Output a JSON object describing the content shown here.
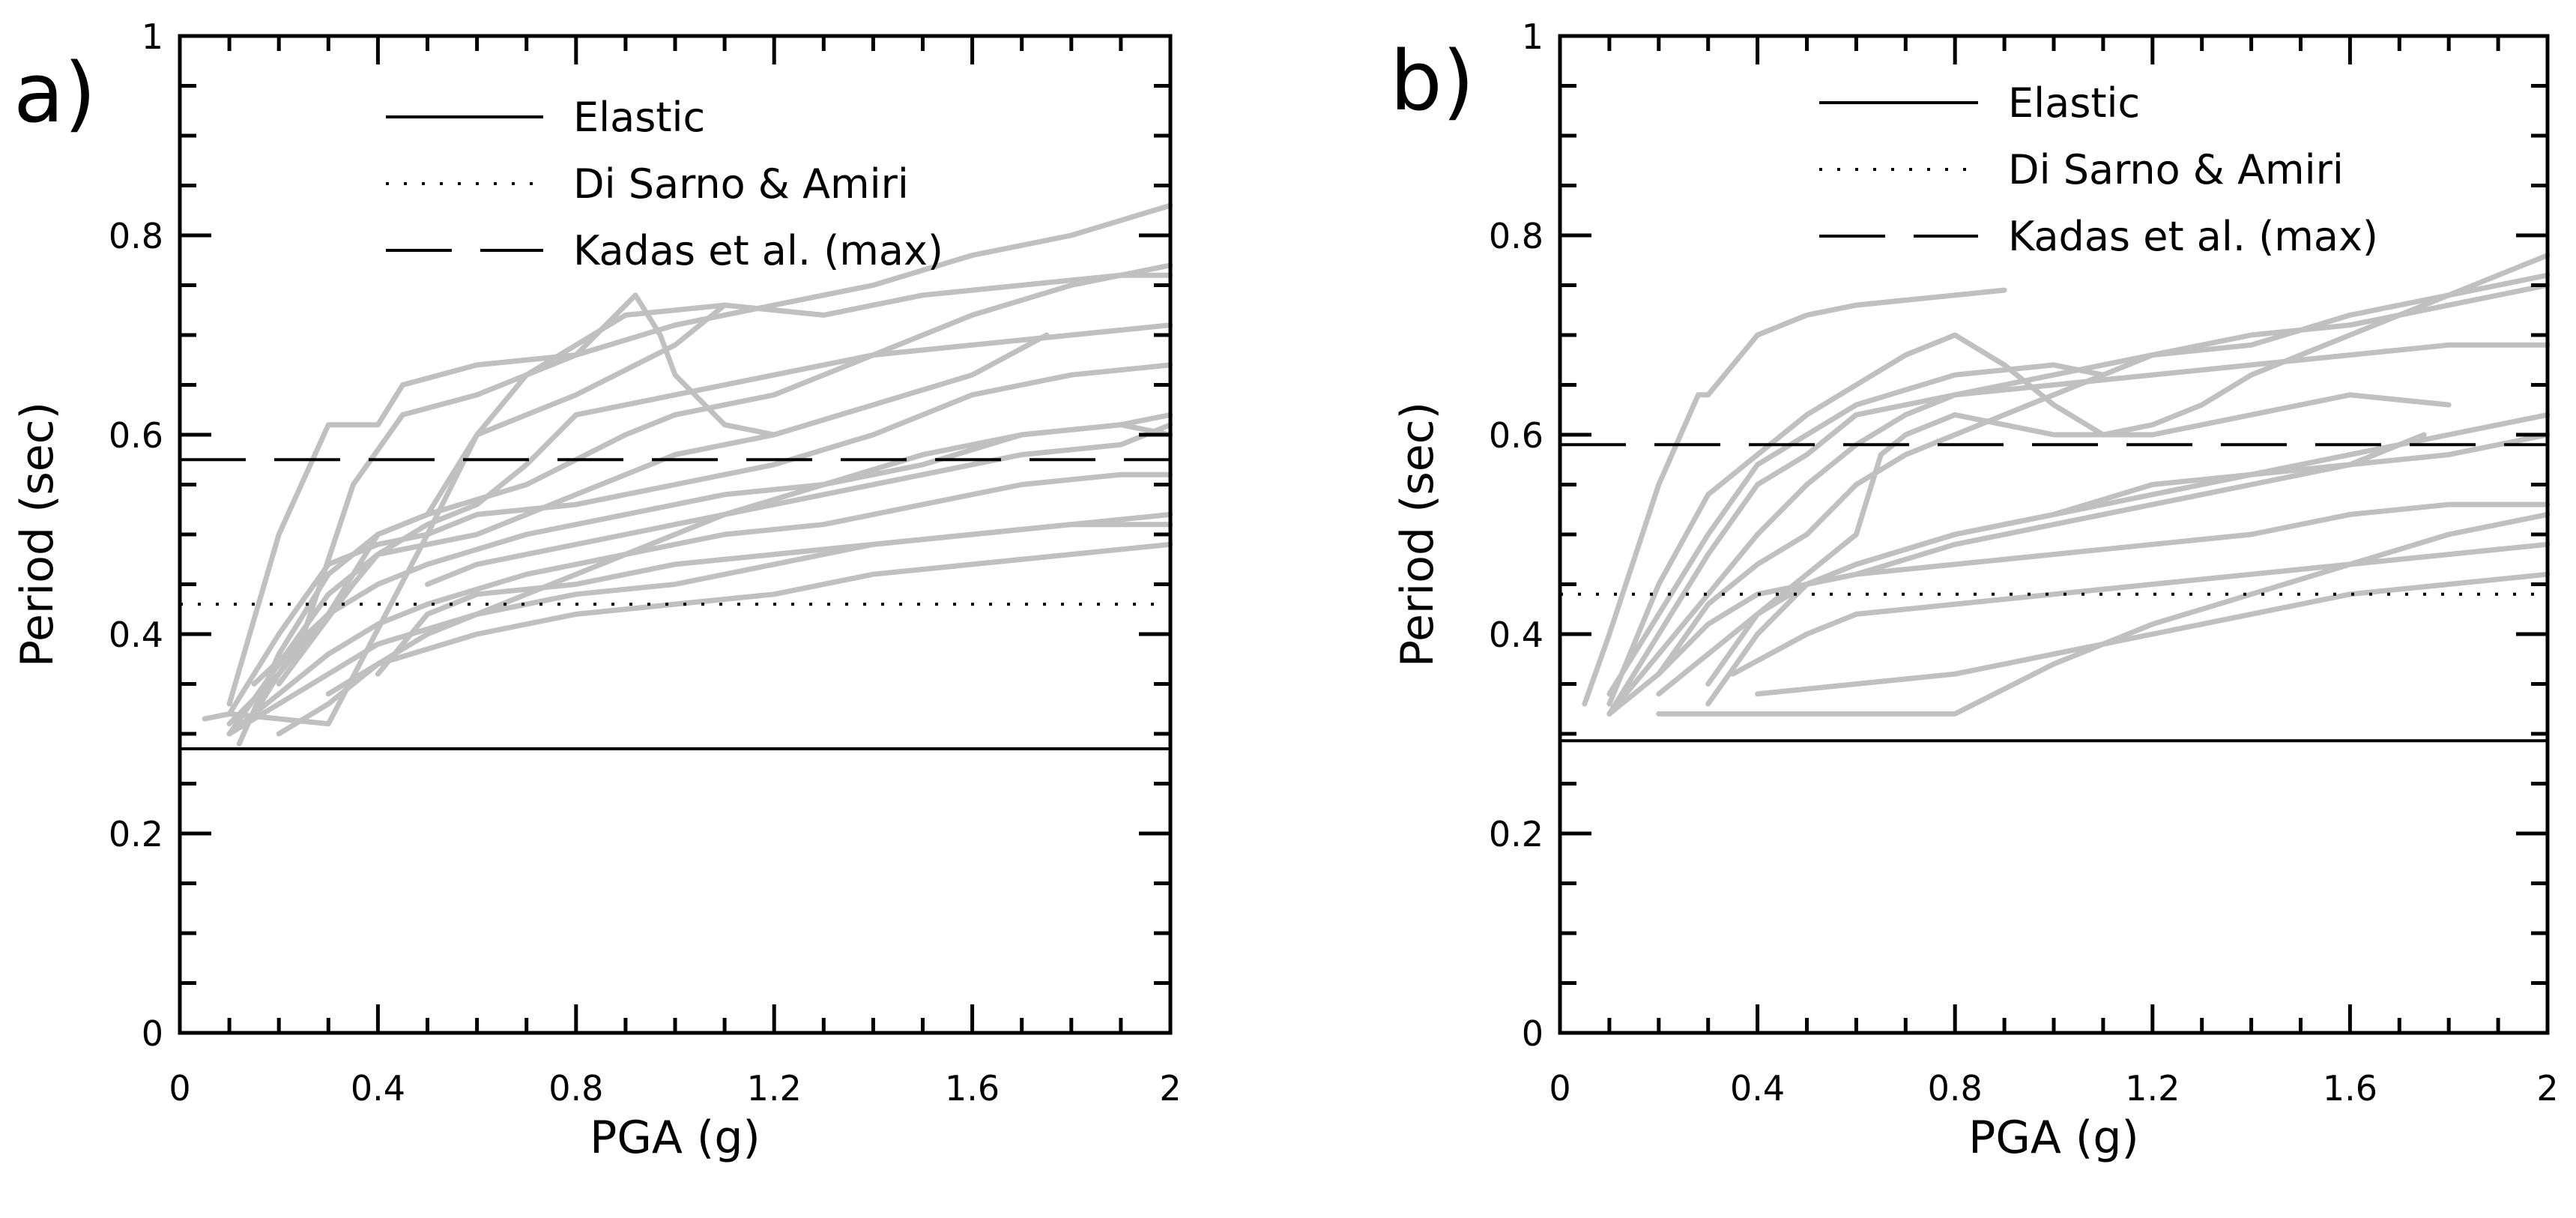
{
  "chart_data": [
    {
      "type": "line",
      "panel_label": "a)",
      "xlabel": "PGA (g)",
      "ylabel": "Period (sec)",
      "xlim": [
        0,
        2
      ],
      "ylim": [
        0,
        1
      ],
      "xticks": [
        "0",
        "0.4",
        "0.8",
        "1.2",
        "1.6",
        "2"
      ],
      "yticks": [
        "0",
        "0.2",
        "0.4",
        "0.6",
        "0.8",
        "1"
      ],
      "legend": [
        {
          "label": "Elastic",
          "style": "solid"
        },
        {
          "label": "Di Sarno & Amiri",
          "style": "dotted"
        },
        {
          "label": "Kadas et al. (max)",
          "style": "dashed"
        }
      ],
      "reference_lines": {
        "elastic": 0.285,
        "di_sarno_amiri": 0.43,
        "kadas_max": 0.575
      },
      "series_color": "#c0c0c0",
      "series": [
        {
          "name": "r1",
          "x": [
            0.05,
            0.1,
            0.2,
            0.3,
            0.4,
            0.5,
            0.6,
            0.8,
            1.0,
            1.2,
            1.4,
            1.6,
            1.8,
            2.0
          ],
          "y": [
            0.315,
            0.32,
            0.4,
            0.47,
            0.49,
            0.5,
            0.52,
            0.53,
            0.55,
            0.57,
            0.6,
            0.64,
            0.66,
            0.67
          ]
        },
        {
          "name": "r2",
          "x": [
            0.1,
            0.2,
            0.3,
            0.4,
            0.45,
            0.6,
            0.8,
            1.0,
            1.2,
            1.4,
            1.6,
            1.8,
            2.0
          ],
          "y": [
            0.33,
            0.5,
            0.61,
            0.61,
            0.65,
            0.67,
            0.68,
            0.71,
            0.73,
            0.75,
            0.78,
            0.8,
            0.83
          ]
        },
        {
          "name": "r3",
          "x": [
            0.15,
            0.25,
            0.35,
            0.45,
            0.6,
            0.8,
            0.92,
            0.97,
            1.0,
            1.1,
            1.2
          ],
          "y": [
            0.32,
            0.4,
            0.55,
            0.62,
            0.64,
            0.68,
            0.74,
            0.7,
            0.66,
            0.61,
            0.6
          ]
        },
        {
          "name": "r4",
          "x": [
            0.1,
            0.2,
            0.3,
            0.4,
            0.5,
            0.7,
            0.9,
            1.1,
            1.3,
            1.5,
            1.7,
            1.9,
            2.0
          ],
          "y": [
            0.31,
            0.36,
            0.42,
            0.45,
            0.47,
            0.5,
            0.52,
            0.54,
            0.55,
            0.57,
            0.6,
            0.61,
            0.62
          ]
        },
        {
          "name": "r5",
          "x": [
            0.1,
            0.2,
            0.3,
            0.4,
            0.5,
            0.7,
            0.9,
            1.1,
            1.3,
            1.5,
            1.7,
            1.9,
            2.0
          ],
          "y": [
            0.3,
            0.34,
            0.38,
            0.41,
            0.43,
            0.46,
            0.48,
            0.5,
            0.51,
            0.53,
            0.55,
            0.56,
            0.56
          ]
        },
        {
          "name": "r6",
          "x": [
            0.1,
            0.2,
            0.3,
            0.4,
            0.6,
            0.8,
            1.0,
            1.2,
            1.4,
            1.6,
            1.8,
            2.0
          ],
          "y": [
            0.3,
            0.33,
            0.36,
            0.39,
            0.42,
            0.44,
            0.45,
            0.47,
            0.49,
            0.5,
            0.51,
            0.52
          ]
        },
        {
          "name": "r7",
          "x": [
            0.15,
            0.3,
            0.4,
            0.5,
            0.7,
            0.9,
            1.0,
            1.2,
            1.4,
            1.6,
            1.8,
            2.0
          ],
          "y": [
            0.35,
            0.42,
            0.5,
            0.52,
            0.55,
            0.6,
            0.62,
            0.64,
            0.68,
            0.72,
            0.75,
            0.77
          ]
        },
        {
          "name": "r8",
          "x": [
            0.2,
            0.35,
            0.4,
            0.6,
            0.8,
            1.0,
            1.2,
            1.4,
            1.6,
            1.75
          ],
          "y": [
            0.35,
            0.45,
            0.48,
            0.5,
            0.54,
            0.58,
            0.6,
            0.63,
            0.66,
            0.7
          ]
        },
        {
          "name": "r9",
          "x": [
            0.1,
            0.2,
            0.3,
            0.4,
            0.5,
            0.6,
            0.7,
            0.8,
            1.0,
            1.2,
            1.4,
            1.6,
            1.8,
            2.0
          ],
          "y": [
            0.3,
            0.37,
            0.44,
            0.48,
            0.51,
            0.53,
            0.57,
            0.62,
            0.64,
            0.66,
            0.68,
            0.69,
            0.7,
            0.71
          ]
        },
        {
          "name": "r10",
          "x": [
            0.2,
            0.3,
            0.4,
            0.6,
            0.8,
            1.0,
            1.2,
            1.4,
            1.6,
            1.8,
            2.0
          ],
          "y": [
            0.3,
            0.33,
            0.37,
            0.4,
            0.42,
            0.43,
            0.44,
            0.46,
            0.47,
            0.48,
            0.49
          ]
        },
        {
          "name": "r11",
          "x": [
            0.3,
            0.4,
            0.5,
            0.7,
            0.9,
            1.1,
            1.3,
            1.5,
            1.7,
            1.9,
            2.0
          ],
          "y": [
            0.34,
            0.37,
            0.4,
            0.44,
            0.48,
            0.52,
            0.55,
            0.58,
            0.6,
            0.61,
            0.6
          ]
        },
        {
          "name": "r12",
          "x": [
            0.4,
            0.5,
            0.6,
            0.8,
            1.0,
            1.2,
            1.4,
            1.6,
            1.8,
            2.0
          ],
          "y": [
            0.36,
            0.42,
            0.44,
            0.45,
            0.47,
            0.48,
            0.49,
            0.5,
            0.51,
            0.51
          ]
        },
        {
          "name": "r13",
          "x": [
            0.12,
            0.2,
            0.3,
            0.4,
            0.5,
            0.6,
            0.8,
            1.0,
            1.1
          ],
          "y": [
            0.29,
            0.38,
            0.46,
            0.5,
            0.52,
            0.6,
            0.64,
            0.69,
            0.73
          ]
        },
        {
          "name": "r14",
          "x": [
            0.5,
            0.6,
            0.7,
            0.9,
            1.1,
            1.3,
            1.5,
            1.7,
            1.9,
            2.0
          ],
          "y": [
            0.45,
            0.47,
            0.48,
            0.5,
            0.52,
            0.54,
            0.56,
            0.58,
            0.59,
            0.61
          ]
        },
        {
          "name": "r15",
          "x": [
            0.1,
            0.3,
            0.5,
            0.6,
            0.7,
            0.9,
            1.1,
            1.3,
            1.5,
            1.7,
            1.9,
            2.0
          ],
          "y": [
            0.32,
            0.31,
            0.5,
            0.6,
            0.66,
            0.72,
            0.73,
            0.72,
            0.74,
            0.75,
            0.76,
            0.76
          ]
        }
      ]
    },
    {
      "type": "line",
      "panel_label": "b)",
      "xlabel": "PGA (g)",
      "ylabel": "Period (sec)",
      "xlim": [
        0,
        2
      ],
      "ylim": [
        0,
        1
      ],
      "xticks": [
        "0",
        "0.4",
        "0.8",
        "1.2",
        "1.6",
        "2"
      ],
      "yticks": [
        "0",
        "0.2",
        "0.4",
        "0.6",
        "0.8",
        "1"
      ],
      "legend": [
        {
          "label": "Elastic",
          "style": "solid"
        },
        {
          "label": "Di Sarno & Amiri",
          "style": "dotted"
        },
        {
          "label": "Kadas et al. (max)",
          "style": "dashed"
        }
      ],
      "reference_lines": {
        "elastic": 0.293,
        "di_sarno_amiri": 0.44,
        "kadas_max": 0.59
      },
      "series_color": "#c0c0c0",
      "series": [
        {
          "name": "s1",
          "x": [
            0.05,
            0.1,
            0.2,
            0.28,
            0.3,
            0.4,
            0.5,
            0.6,
            0.8,
            0.9
          ],
          "y": [
            0.33,
            0.4,
            0.55,
            0.64,
            0.64,
            0.7,
            0.72,
            0.73,
            0.74,
            0.745
          ]
        },
        {
          "name": "s2",
          "x": [
            0.1,
            0.2,
            0.3,
            0.4,
            0.5,
            0.6,
            0.7,
            0.8,
            0.9,
            1.0,
            1.1,
            1.2,
            1.3,
            1.4,
            1.6,
            1.8,
            2.0
          ],
          "y": [
            0.33,
            0.45,
            0.54,
            0.58,
            0.62,
            0.65,
            0.68,
            0.7,
            0.67,
            0.63,
            0.6,
            0.61,
            0.63,
            0.66,
            0.7,
            0.74,
            0.78
          ]
        },
        {
          "name": "s3",
          "x": [
            0.1,
            0.2,
            0.3,
            0.4,
            0.5,
            0.6,
            0.8,
            1.0,
            1.2,
            1.4,
            1.6,
            1.8,
            2.0
          ],
          "y": [
            0.32,
            0.4,
            0.48,
            0.55,
            0.58,
            0.62,
            0.64,
            0.66,
            0.68,
            0.7,
            0.71,
            0.73,
            0.75
          ]
        },
        {
          "name": "s4",
          "x": [
            0.2,
            0.3,
            0.4,
            0.5,
            0.6,
            0.7,
            0.8,
            0.9,
            1.0,
            1.2,
            1.4,
            1.6,
            1.8,
            2.0
          ],
          "y": [
            0.36,
            0.43,
            0.47,
            0.5,
            0.55,
            0.58,
            0.6,
            0.62,
            0.64,
            0.68,
            0.69,
            0.72,
            0.74,
            0.76
          ]
        },
        {
          "name": "s5",
          "x": [
            0.1,
            0.2,
            0.3,
            0.4,
            0.6,
            0.8,
            1.0,
            1.2,
            1.4,
            1.6,
            1.8,
            2.0
          ],
          "y": [
            0.32,
            0.36,
            0.41,
            0.44,
            0.46,
            0.49,
            0.51,
            0.53,
            0.55,
            0.57,
            0.58,
            0.6
          ]
        },
        {
          "name": "s6",
          "x": [
            0.2,
            0.3,
            0.4,
            0.5,
            0.6,
            0.8,
            1.0,
            1.2,
            1.4,
            1.6,
            1.8,
            2.0
          ],
          "y": [
            0.34,
            0.38,
            0.42,
            0.45,
            0.47,
            0.5,
            0.52,
            0.54,
            0.56,
            0.58,
            0.6,
            0.62
          ]
        },
        {
          "name": "s7",
          "x": [
            0.3,
            0.4,
            0.5,
            0.6,
            0.8,
            1.0,
            1.2,
            1.4,
            1.6,
            1.8,
            2.0
          ],
          "y": [
            0.33,
            0.4,
            0.45,
            0.46,
            0.47,
            0.48,
            0.49,
            0.5,
            0.52,
            0.53,
            0.53
          ]
        },
        {
          "name": "s8",
          "x": [
            0.35,
            0.5,
            0.6,
            0.8,
            1.0,
            1.2,
            1.4,
            1.6,
            1.8,
            2.0
          ],
          "y": [
            0.36,
            0.4,
            0.42,
            0.43,
            0.44,
            0.45,
            0.46,
            0.47,
            0.48,
            0.49
          ]
        },
        {
          "name": "s9",
          "x": [
            0.4,
            0.6,
            0.8,
            1.0,
            1.2,
            1.4,
            1.6,
            1.8,
            2.0
          ],
          "y": [
            0.34,
            0.35,
            0.36,
            0.38,
            0.4,
            0.42,
            0.44,
            0.45,
            0.46
          ]
        },
        {
          "name": "s10",
          "x": [
            0.2,
            0.4,
            0.6,
            0.8,
            1.0,
            1.2,
            1.4,
            1.6,
            1.8,
            2.0
          ],
          "y": [
            0.32,
            0.32,
            0.32,
            0.32,
            0.37,
            0.41,
            0.44,
            0.47,
            0.5,
            0.52
          ]
        },
        {
          "name": "s11",
          "x": [
            0.1,
            0.2,
            0.3,
            0.4,
            0.5,
            0.6,
            0.7,
            0.8,
            1.0,
            1.2,
            1.4,
            1.6,
            1.8,
            2.0
          ],
          "y": [
            0.32,
            0.38,
            0.44,
            0.5,
            0.55,
            0.59,
            0.62,
            0.64,
            0.65,
            0.66,
            0.67,
            0.68,
            0.69,
            0.69
          ]
        },
        {
          "name": "s12",
          "x": [
            0.3,
            0.4,
            0.5,
            0.6,
            0.65,
            0.7,
            0.8,
            1.0,
            1.2,
            1.4,
            1.6,
            1.8
          ],
          "y": [
            0.35,
            0.42,
            0.46,
            0.5,
            0.58,
            0.6,
            0.62,
            0.6,
            0.6,
            0.62,
            0.64,
            0.63
          ]
        },
        {
          "name": "s13",
          "x": [
            0.5,
            0.6,
            0.8,
            1.0,
            1.2,
            1.4,
            1.6,
            1.75
          ],
          "y": [
            0.45,
            0.47,
            0.5,
            0.52,
            0.55,
            0.56,
            0.57,
            0.6
          ]
        },
        {
          "name": "s14",
          "x": [
            0.1,
            0.2,
            0.3,
            0.4,
            0.5,
            0.6,
            0.8,
            1.0,
            1.1
          ],
          "y": [
            0.34,
            0.42,
            0.5,
            0.57,
            0.6,
            0.63,
            0.66,
            0.67,
            0.66
          ]
        }
      ]
    }
  ]
}
